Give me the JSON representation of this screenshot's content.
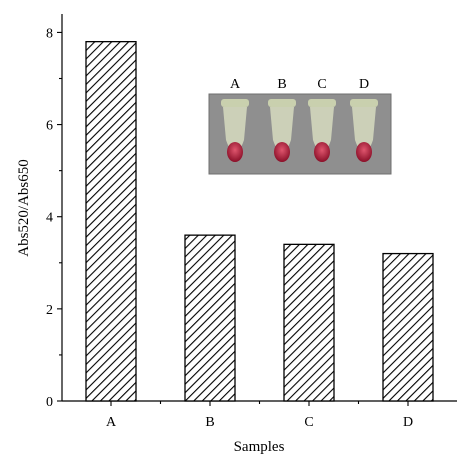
{
  "chart_data": {
    "type": "bar",
    "categories": [
      "A",
      "B",
      "C",
      "D"
    ],
    "values": [
      7.8,
      3.6,
      3.4,
      3.2
    ],
    "xlabel": "Samples",
    "ylabel": "Abs520/Abs650",
    "ylim": [
      0,
      8.4
    ],
    "yticks": [
      0,
      2,
      4,
      6,
      8
    ],
    "grid": false,
    "bar_fill": "diagonal-hatch",
    "inset": {
      "description_visible": false,
      "tube_labels": [
        "A",
        "B",
        "C",
        "D"
      ]
    }
  },
  "colors": {
    "bar_stroke": "#000000",
    "inset_background": "#8c8c8c",
    "tube_liquid": "#b01a3a",
    "tube_body": "#d7dcc0"
  }
}
